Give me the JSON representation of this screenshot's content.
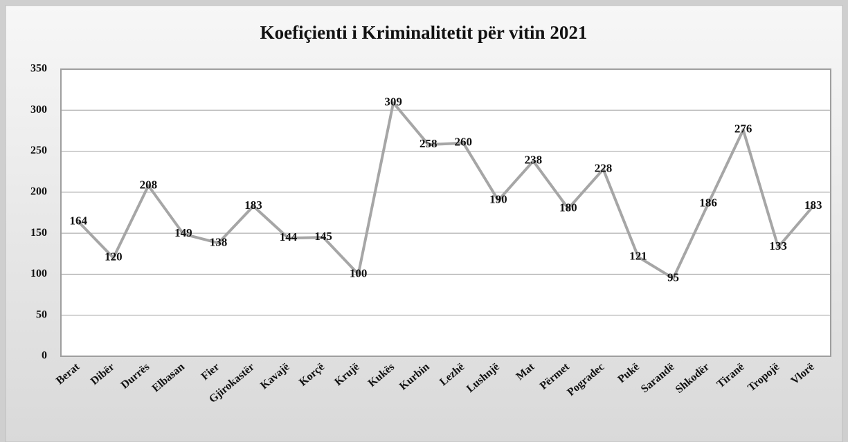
{
  "chart_data": {
    "type": "line",
    "title": "Koefiçienti i Kriminalitetit për vitin 2021",
    "categories": [
      "Berat",
      "Dibër",
      "Durrës",
      "Elbasan",
      "Fier",
      "Gjirokastër",
      "Kavajë",
      "Korçë",
      "Krujë",
      "Kukës",
      "Kurbin",
      "Lezhë",
      "Lushnjë",
      "Mat",
      "Përmet",
      "Pogradec",
      "Pukë",
      "Sarandë",
      "Shkodër",
      "Tiranë",
      "Tropojë",
      "Vlorë"
    ],
    "values": [
      164,
      120,
      208,
      149,
      138,
      183,
      144,
      145,
      100,
      309,
      258,
      260,
      190,
      238,
      180,
      228,
      121,
      95,
      186,
      276,
      133,
      183
    ],
    "color": "#a6a6a6",
    "ylim": [
      0,
      350
    ],
    "yticks": [
      0,
      50,
      100,
      150,
      200,
      250,
      300,
      350
    ],
    "grid": true
  }
}
